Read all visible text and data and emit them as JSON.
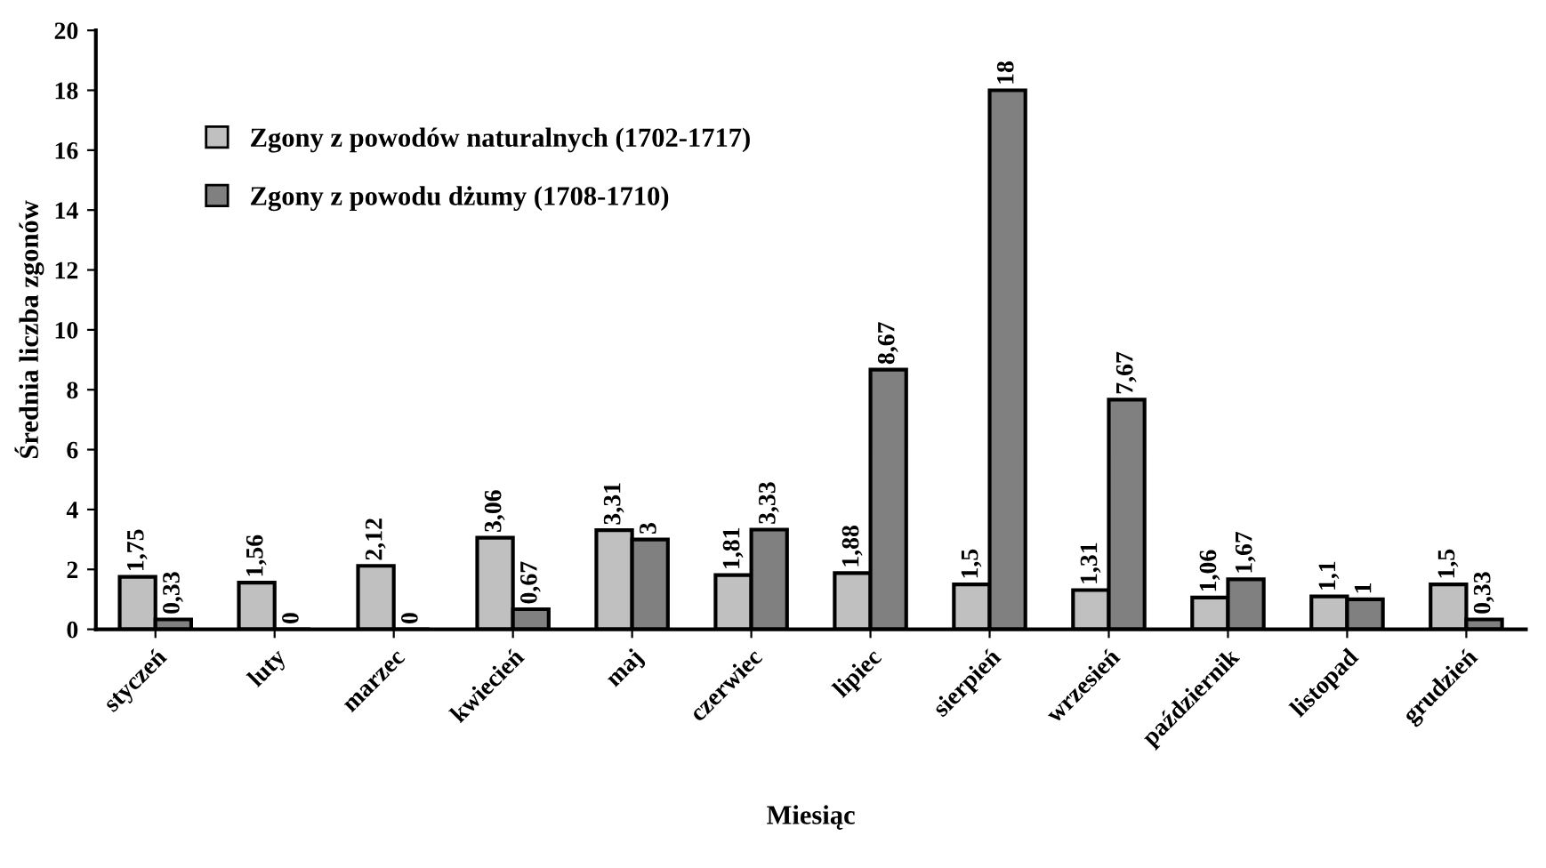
{
  "chart_data": {
    "type": "bar",
    "xlabel": "Miesiąc",
    "ylabel": "Średnia liczba zgonów",
    "categories": [
      "styczeń",
      "luty",
      "marzec",
      "kwiecień",
      "maj",
      "czerwiec",
      "lipiec",
      "sierpień",
      "wrzesień",
      "październik",
      "listopad",
      "grudzień"
    ],
    "series": [
      {
        "name": "Zgony z powodów naturalnych (1702-1717)",
        "color": "#c0c0c0",
        "values": [
          1.75,
          1.56,
          2.12,
          3.06,
          3.31,
          1.81,
          1.88,
          1.5,
          1.31,
          1.06,
          1.1,
          1.5
        ],
        "value_labels": [
          "1,75",
          "1,56",
          "2,12",
          "3,06",
          "3,31",
          "1,81",
          "1,88",
          "1,5",
          "1,31",
          "1,06",
          "1,1",
          "1,5"
        ]
      },
      {
        "name": "Zgony z powodu dżumy (1708-1710)",
        "color": "#808080",
        "values": [
          0.33,
          0,
          0,
          0.67,
          3,
          3.33,
          8.67,
          18,
          7.67,
          1.67,
          1,
          0.33
        ],
        "value_labels": [
          "0,33",
          "0",
          "0",
          "0,67",
          "3",
          "3,33",
          "8,67",
          "18",
          "7,67",
          "1,67",
          "1",
          "0,33"
        ]
      }
    ],
    "ylim": [
      0,
      20
    ],
    "yticks": [
      0,
      2,
      4,
      6,
      8,
      10,
      12,
      14,
      16,
      18,
      20
    ],
    "grid": false,
    "legend": "top left"
  }
}
